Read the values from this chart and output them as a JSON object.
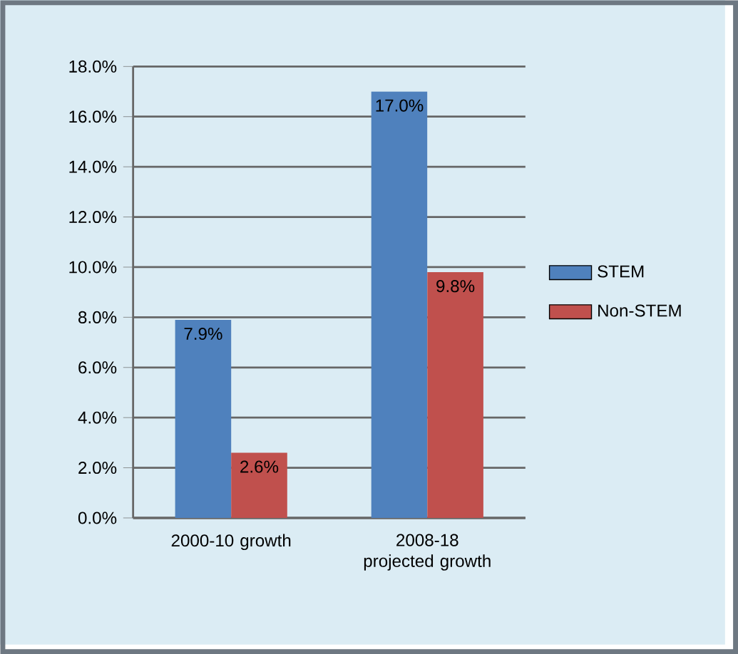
{
  "chart_data": {
    "type": "bar",
    "categories": [
      "2000-10 growth",
      "2008-18 projected growth"
    ],
    "series": [
      {
        "name": "STEM",
        "color": "#4f81bd",
        "values": [
          7.9,
          17.0
        ],
        "value_labels": [
          "7.9%",
          "17.0%"
        ]
      },
      {
        "name": "Non-STEM",
        "color": "#c0504d",
        "values": [
          2.6,
          9.8
        ],
        "value_labels": [
          "2.6%",
          "9.8%"
        ]
      }
    ],
    "ylim": [
      0,
      18
    ],
    "yticks": [
      {
        "value": 0,
        "label": "0.0%"
      },
      {
        "value": 2,
        "label": "2.0%"
      },
      {
        "value": 4,
        "label": "4.0%"
      },
      {
        "value": 6,
        "label": "6.0%"
      },
      {
        "value": 8,
        "label": "8.0%"
      },
      {
        "value": 10,
        "label": "10.0%"
      },
      {
        "value": 12,
        "label": "12.0%"
      },
      {
        "value": 14,
        "label": "14.0%"
      },
      {
        "value": 16,
        "label": "16.0%"
      },
      {
        "value": 18,
        "label": "18.0%"
      }
    ],
    "grid": "y",
    "legend": "right"
  }
}
